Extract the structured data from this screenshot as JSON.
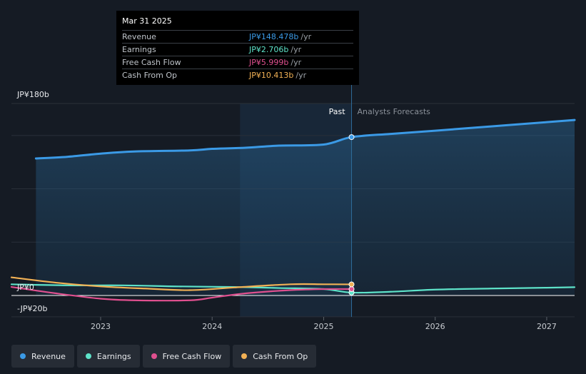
{
  "tooltip": {
    "date": "Mar 31 2025",
    "rows": [
      {
        "label": "Revenue",
        "value": "JP¥148.478b",
        "unit": "/yr",
        "color": "#3b9ae6"
      },
      {
        "label": "Earnings",
        "value": "JP¥2.706b",
        "unit": "/yr",
        "color": "#5ee3c9"
      },
      {
        "label": "Free Cash Flow",
        "value": "JP¥5.999b",
        "unit": "/yr",
        "color": "#e0508f"
      },
      {
        "label": "Cash From Op",
        "value": "JP¥10.413b",
        "unit": "/yr",
        "color": "#f2b155"
      }
    ]
  },
  "legend": [
    {
      "label": "Revenue",
      "color": "#3b9ae6"
    },
    {
      "label": "Earnings",
      "color": "#5ee3c9"
    },
    {
      "label": "Free Cash Flow",
      "color": "#e0508f"
    },
    {
      "label": "Cash From Op",
      "color": "#f2b155"
    }
  ],
  "chart_data": {
    "type": "line",
    "y_labels": {
      "top": "JP¥180b",
      "zero": "JP¥0",
      "bottom": "-JP¥20b"
    },
    "ylim": [
      -20,
      180
    ],
    "xlim": [
      2022.2,
      2027.25
    ],
    "x_ticks": [
      {
        "label": "2023",
        "value": 2023.0
      },
      {
        "label": "2024",
        "value": 2024.0
      },
      {
        "label": "2025",
        "value": 2025.0
      },
      {
        "label": "2026",
        "value": 2026.0
      },
      {
        "label": "2027",
        "value": 2027.0
      }
    ],
    "past_label": "Past",
    "forecast_label": "Analysts Forecasts",
    "past_start": 2024.25,
    "divider": 2025.25,
    "series": [
      {
        "name": "Revenue",
        "color": "#3b9ae6",
        "fill": true,
        "points": [
          [
            2022.42,
            128.5
          ],
          [
            2022.7,
            130
          ],
          [
            2023.0,
            133
          ],
          [
            2023.3,
            135
          ],
          [
            2023.8,
            136
          ],
          [
            2024.0,
            137.5
          ],
          [
            2024.3,
            138.5
          ],
          [
            2024.6,
            140.5
          ],
          [
            2025.0,
            141.5
          ],
          [
            2025.25,
            148.5
          ],
          [
            2025.6,
            151.5
          ],
          [
            2026.0,
            154.5
          ],
          [
            2026.5,
            158.5
          ],
          [
            2027.0,
            162.5
          ],
          [
            2027.25,
            164.5
          ]
        ]
      },
      {
        "name": "Earnings",
        "color": "#5ee3c9",
        "fill": false,
        "points": [
          [
            2022.2,
            10.5
          ],
          [
            2022.7,
            9.5
          ],
          [
            2023.2,
            9.5
          ],
          [
            2023.7,
            8.5
          ],
          [
            2024.2,
            8
          ],
          [
            2024.6,
            7
          ],
          [
            2025.0,
            6
          ],
          [
            2025.25,
            2.706
          ],
          [
            2025.6,
            3.5
          ],
          [
            2026.0,
            5.5
          ],
          [
            2026.5,
            6.5
          ],
          [
            2027.0,
            7.3
          ],
          [
            2027.25,
            7.8
          ]
        ]
      },
      {
        "name": "Free Cash Flow",
        "color": "#e0508f",
        "fill": false,
        "points": [
          [
            2022.2,
            8
          ],
          [
            2022.6,
            2
          ],
          [
            2023.0,
            -3
          ],
          [
            2023.3,
            -4.5
          ],
          [
            2023.8,
            -4.5
          ],
          [
            2024.0,
            -2
          ],
          [
            2024.3,
            2
          ],
          [
            2024.7,
            5
          ],
          [
            2025.0,
            6
          ],
          [
            2025.25,
            5.999
          ]
        ]
      },
      {
        "name": "Cash From Op",
        "color": "#f2b155",
        "fill": false,
        "points": [
          [
            2022.2,
            17
          ],
          [
            2022.6,
            12
          ],
          [
            2023.0,
            8.5
          ],
          [
            2023.4,
            6.5
          ],
          [
            2023.8,
            5
          ],
          [
            2024.2,
            7.5
          ],
          [
            2024.7,
            10.5
          ],
          [
            2025.0,
            10.5
          ],
          [
            2025.25,
            10.413
          ]
        ]
      }
    ],
    "markers_at": 2025.25
  }
}
